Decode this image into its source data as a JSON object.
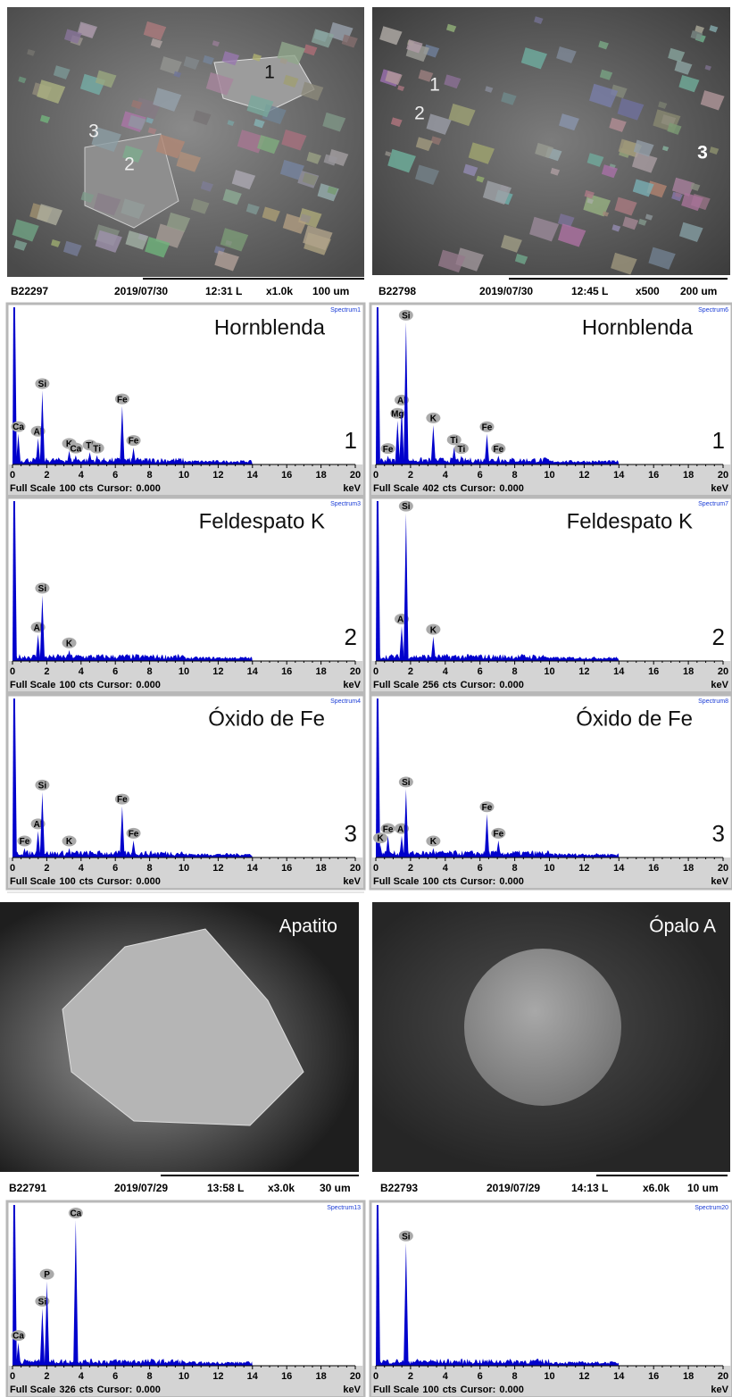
{
  "sem_images": [
    {
      "markers": [
        "1",
        "3",
        "2"
      ],
      "info": {
        "id": "B22297",
        "date": "2019/07/30",
        "time": "12:31 L",
        "magnification": "x1.0k",
        "scale": "100 um"
      }
    },
    {
      "markers": [
        "1",
        "2",
        "3"
      ],
      "info": {
        "id": "B22798",
        "date": "2019/07/30",
        "time": "12:45 L",
        "magnification": "x500",
        "scale": "200 um"
      }
    },
    {
      "mineral": "Apatito",
      "info": {
        "id": "B22791",
        "date": "2019/07/29",
        "time": "13:58  L",
        "magnification": "x3.0k",
        "scale": "30 um"
      }
    },
    {
      "mineral": "Ópalo A",
      "info": {
        "id": "B22793",
        "date": "2019/07/29",
        "time": "14:13  L",
        "magnification": "x6.0k",
        "scale": "10 um"
      }
    }
  ],
  "spectra_common": {
    "xlim": [
      0,
      20
    ],
    "xticks": [
      0,
      2,
      4,
      6,
      8,
      10,
      12,
      14,
      16,
      18,
      20
    ],
    "full_scale_label": "Full Scale",
    "counts_unit": "cts",
    "cursor_label": "Cursor:",
    "cursor": "0.000",
    "unit": "keV"
  },
  "spectra": [
    {
      "mineral": "Hornblenda",
      "number": "1",
      "spectrum_id": "Spectrum1",
      "counts": 100,
      "peaks": [
        {
          "element": "Ca",
          "kev": 0.34,
          "cts": 20
        },
        {
          "element": "Al",
          "kev": 1.49,
          "cts": 17
        },
        {
          "element": "Si",
          "kev": 1.74,
          "cts": 48
        },
        {
          "element": "K",
          "kev": 3.31,
          "cts": 9
        },
        {
          "element": "Ca",
          "kev": 3.69,
          "cts": 6
        },
        {
          "element": "Ti",
          "kev": 4.51,
          "cts": 8
        },
        {
          "element": "Ti",
          "kev": 4.93,
          "cts": 6
        },
        {
          "element": "Fe",
          "kev": 6.4,
          "cts": 38
        },
        {
          "element": "Fe",
          "kev": 7.06,
          "cts": 11
        }
      ]
    },
    {
      "mineral": "Hornblenda",
      "number": "1",
      "spectrum_id": "Spectrum6",
      "counts": 402,
      "peaks": [
        {
          "element": "Fe",
          "kev": 0.7,
          "cts": 23
        },
        {
          "element": "Mg",
          "kev": 1.25,
          "cts": 115
        },
        {
          "element": "Al",
          "kev": 1.49,
          "cts": 150
        },
        {
          "element": "Si",
          "kev": 1.74,
          "cts": 372
        },
        {
          "element": "K",
          "kev": 3.31,
          "cts": 103
        },
        {
          "element": "Ti",
          "kev": 4.51,
          "cts": 46
        },
        {
          "element": "Ti",
          "kev": 4.93,
          "cts": 23
        },
        {
          "element": "Fe",
          "kev": 6.4,
          "cts": 80
        },
        {
          "element": "Fe",
          "kev": 7.06,
          "cts": 23
        }
      ]
    },
    {
      "mineral": "Feldespato K",
      "number": "2",
      "spectrum_id": "Spectrum3",
      "counts": 100,
      "peaks": [
        {
          "element": "Al",
          "kev": 1.49,
          "cts": 17
        },
        {
          "element": "Si",
          "kev": 1.74,
          "cts": 42
        },
        {
          "element": "K",
          "kev": 3.31,
          "cts": 7
        }
      ]
    },
    {
      "mineral": "Feldespato K",
      "number": "2",
      "spectrum_id": "Spectrum7",
      "counts": 256,
      "peaks": [
        {
          "element": "Al",
          "kev": 1.49,
          "cts": 57
        },
        {
          "element": "Si",
          "kev": 1.74,
          "cts": 242
        },
        {
          "element": "K",
          "kev": 3.31,
          "cts": 40
        }
      ]
    },
    {
      "mineral": "Óxido de Fe",
      "number": "3",
      "spectrum_id": "Spectrum4",
      "counts": 100,
      "peaks": [
        {
          "element": "Fe",
          "kev": 0.7,
          "cts": 6
        },
        {
          "element": "Al",
          "kev": 1.49,
          "cts": 17
        },
        {
          "element": "Si",
          "kev": 1.74,
          "cts": 42
        },
        {
          "element": "K",
          "kev": 3.31,
          "cts": 6
        },
        {
          "element": "Fe",
          "kev": 6.4,
          "cts": 33
        },
        {
          "element": "Fe",
          "kev": 7.06,
          "cts": 11
        }
      ]
    },
    {
      "mineral": "Óxido de Fe",
      "number": "3",
      "spectrum_id": "Spectrum8",
      "counts": 100,
      "peaks": [
        {
          "element": "K",
          "kev": 0.26,
          "cts": 8
        },
        {
          "element": "Fe",
          "kev": 0.7,
          "cts": 14
        },
        {
          "element": "Al",
          "kev": 1.49,
          "cts": 14
        },
        {
          "element": "Si",
          "kev": 1.74,
          "cts": 44
        },
        {
          "element": "K",
          "kev": 3.31,
          "cts": 6
        },
        {
          "element": "Fe",
          "kev": 6.4,
          "cts": 28
        },
        {
          "element": "Fe",
          "kev": 7.06,
          "cts": 11
        }
      ]
    },
    {
      "spectrum_id": "Spectrum13",
      "counts": 326,
      "peaks": [
        {
          "element": "Ca",
          "kev": 0.34,
          "cts": 48
        },
        {
          "element": "Si",
          "kev": 1.74,
          "cts": 119
        },
        {
          "element": "P",
          "kev": 2.01,
          "cts": 175
        },
        {
          "element": "Ca",
          "kev": 3.69,
          "cts": 302
        }
      ]
    },
    {
      "spectrum_id": "Spectrum20",
      "counts": 100,
      "peaks": [
        {
          "element": "Si",
          "kev": 1.74,
          "cts": 78
        }
      ]
    }
  ]
}
